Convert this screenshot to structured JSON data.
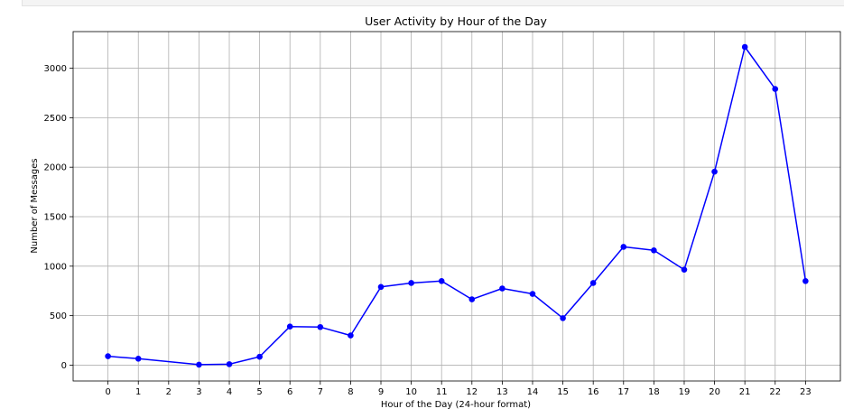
{
  "chart_data": {
    "type": "line",
    "title": "User Activity by Hour of the Day",
    "xlabel": "Hour of the Day (24-hour format)",
    "ylabel": "Number of Messages",
    "x": [
      0,
      1,
      3,
      4,
      5,
      6,
      7,
      8,
      9,
      10,
      11,
      12,
      13,
      14,
      15,
      16,
      17,
      18,
      19,
      20,
      21,
      22,
      23
    ],
    "x_ticks": [
      0,
      1,
      2,
      3,
      4,
      5,
      6,
      7,
      8,
      9,
      10,
      11,
      12,
      13,
      14,
      15,
      16,
      17,
      18,
      19,
      20,
      21,
      22,
      23
    ],
    "y_ticks": [
      0,
      500,
      1000,
      1500,
      2000,
      2500,
      3000
    ],
    "series": [
      {
        "values": [
          90,
          65,
          5,
          10,
          85,
          390,
          385,
          300,
          790,
          830,
          850,
          665,
          775,
          720,
          475,
          830,
          1195,
          1160,
          965,
          1955,
          3215,
          2790,
          850
        ]
      }
    ],
    "xlim": [
      -1.15,
      24.15
    ],
    "ylim": [
      -160,
      3370
    ],
    "grid": true,
    "line_color": "#0000ff",
    "marker": "circle"
  }
}
